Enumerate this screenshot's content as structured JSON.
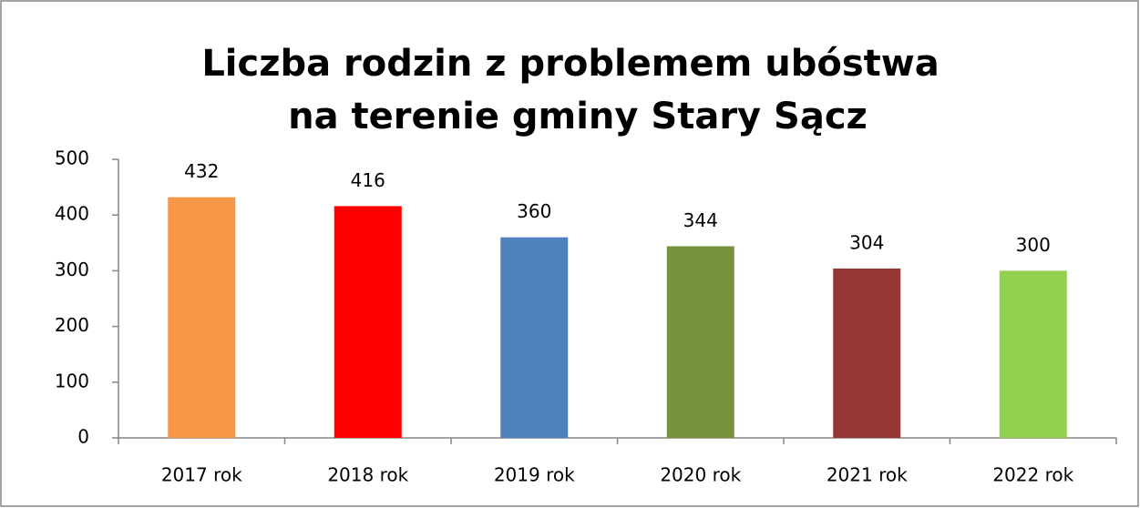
{
  "chart_data": {
    "type": "bar",
    "title": [
      "Liczba rodzin z problemem ubóstwa",
      "na terenie gminy Stary Sącz"
    ],
    "categories": [
      "2017 rok",
      "2018 rok",
      "2019 rok",
      "2020 rok",
      "2021 rok",
      "2022 rok"
    ],
    "values": [
      432,
      416,
      360,
      344,
      304,
      300
    ],
    "colors": [
      "#f79646",
      "#ff0000",
      "#4f81bd",
      "#77933c",
      "#953735",
      "#92d050"
    ],
    "ylim": [
      0,
      500
    ],
    "yticks": [
      0,
      100,
      200,
      300,
      400,
      500
    ],
    "grid": false
  }
}
